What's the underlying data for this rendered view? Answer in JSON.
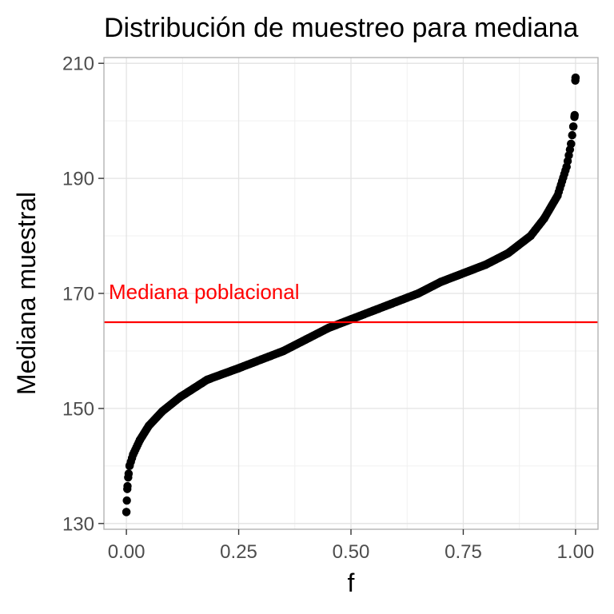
{
  "chart_data": {
    "type": "scatter",
    "title": "Distribución de muestreo para mediana",
    "xlabel": "f",
    "ylabel": "Mediana muestral",
    "xlim": [
      -0.05,
      1.05
    ],
    "ylim": [
      129,
      211
    ],
    "x_ticks": [
      0,
      0.25,
      0.5,
      0.75,
      1
    ],
    "x_tick_labels": [
      "0.00",
      "0.25",
      "0.50",
      "0.75",
      "1.00"
    ],
    "y_ticks": [
      130,
      150,
      170,
      190,
      210
    ],
    "y_tick_labels": [
      "130",
      "150",
      "170",
      "190",
      "210"
    ],
    "grid": true,
    "point_color": "#000000",
    "reference_line": {
      "y": 165,
      "label": "Mediana poblacional",
      "color": "#ff0000"
    },
    "quantile_curve": [
      [
        0.0,
        132
      ],
      [
        0.001,
        134
      ],
      [
        0.002,
        136
      ],
      [
        0.004,
        138
      ],
      [
        0.007,
        140
      ],
      [
        0.015,
        142
      ],
      [
        0.03,
        144.5
      ],
      [
        0.05,
        147
      ],
      [
        0.08,
        149.5
      ],
      [
        0.12,
        152
      ],
      [
        0.18,
        155
      ],
      [
        0.25,
        157
      ],
      [
        0.3,
        158.5
      ],
      [
        0.35,
        160
      ],
      [
        0.4,
        162
      ],
      [
        0.45,
        164
      ],
      [
        0.5,
        165.5
      ],
      [
        0.55,
        167
      ],
      [
        0.6,
        168.5
      ],
      [
        0.65,
        170
      ],
      [
        0.7,
        172
      ],
      [
        0.75,
        173.5
      ],
      [
        0.8,
        175
      ],
      [
        0.85,
        177
      ],
      [
        0.9,
        180
      ],
      [
        0.93,
        183
      ],
      [
        0.96,
        187
      ],
      [
        0.98,
        192
      ],
      [
        0.99,
        196
      ],
      [
        0.995,
        199
      ],
      [
        0.998,
        201
      ],
      [
        0.9995,
        207
      ],
      [
        1.0,
        207.5
      ]
    ]
  }
}
